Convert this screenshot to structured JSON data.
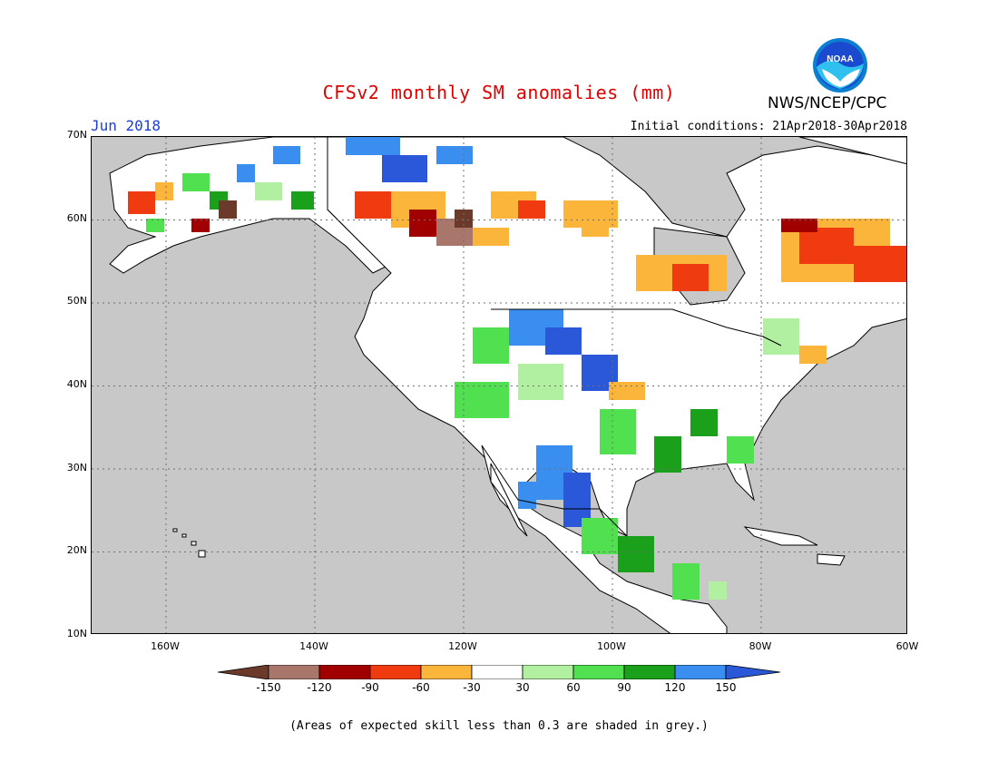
{
  "header": {
    "title": "CFSv2 monthly SM anomalies (mm)",
    "agency": "NWS/NCEP/CPC",
    "period": "Jun 2018",
    "initial_conditions": "Initial conditions: 21Apr2018-30Apr2018",
    "logo_text": "NOAA"
  },
  "map": {
    "lat_labels": [
      "70N",
      "60N",
      "50N",
      "40N",
      "30N",
      "20N",
      "10N"
    ],
    "lon_labels": [
      "160W",
      "140W",
      "120W",
      "100W",
      "80W",
      "60W"
    ],
    "background_color": "#c8c8c8",
    "land_color": "#ffffff"
  },
  "legend": {
    "labels": [
      "-150",
      "-120",
      "-90",
      "-60",
      "-30",
      "30",
      "60",
      "90",
      "120",
      "150"
    ],
    "colors": [
      "#6b3a2a",
      "#a8766a",
      "#a00000",
      "#f03a10",
      "#fbb53a",
      "#ffffff",
      "#b0f0a0",
      "#50e050",
      "#1aa01a",
      "#3a8ef0",
      "#2a58d8"
    ]
  },
  "footnote": "(Areas of expected skill less than 0.3 are shaded in grey.)"
}
